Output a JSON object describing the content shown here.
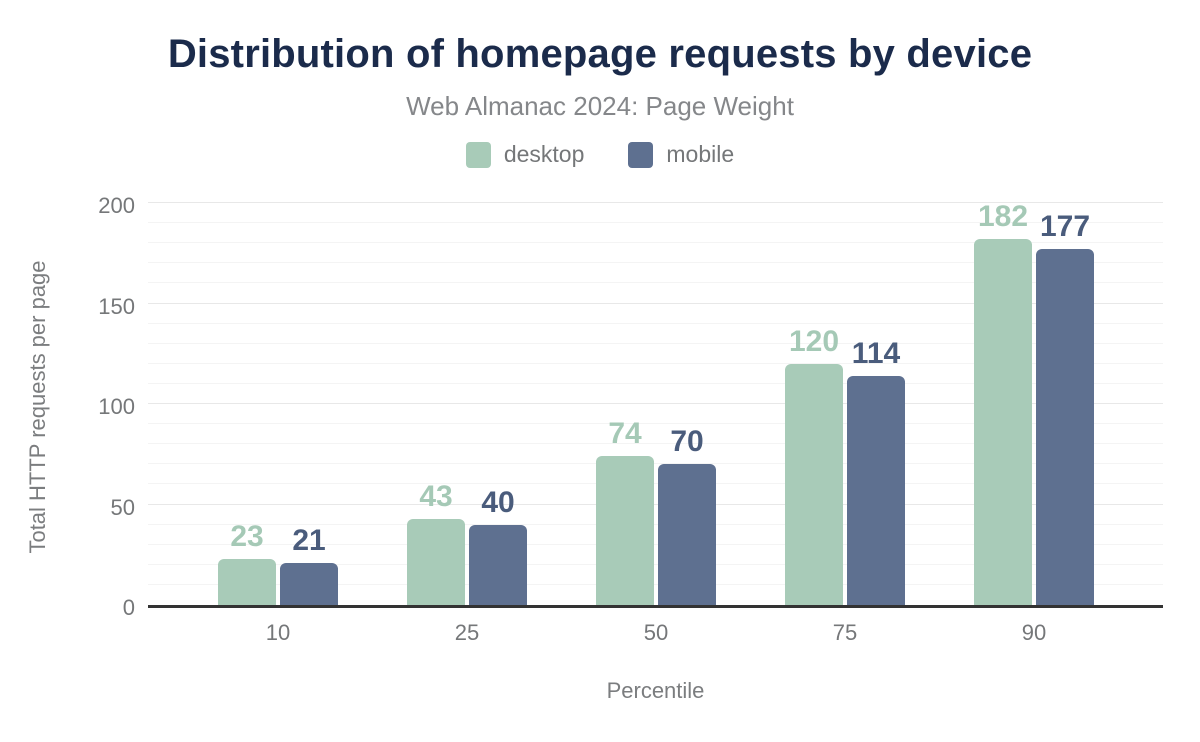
{
  "chart_data": {
    "type": "bar",
    "title": "Distribution of homepage requests by device",
    "subtitle": "Web Almanac 2024: Page Weight",
    "xlabel": "Percentile",
    "ylabel": "Total HTTP requests per page",
    "categories": [
      "10",
      "25",
      "50",
      "75",
      "90"
    ],
    "series": [
      {
        "name": "desktop",
        "color": "#a8cbb8",
        "label_color": "#a5c9b6",
        "values": [
          23,
          43,
          74,
          120,
          182
        ]
      },
      {
        "name": "mobile",
        "color": "#5e7090",
        "label_color": "#4a5c7c",
        "values": [
          21,
          40,
          70,
          114,
          177
        ]
      }
    ],
    "ylim": [
      0,
      200
    ],
    "yticks": [
      0,
      50,
      100,
      150,
      200
    ],
    "grid": {
      "minor_step": 10,
      "major_step": 50,
      "minor_color": "#f4f4f4",
      "major_color": "#e8e8e8"
    },
    "legend_position": "top",
    "colors": {
      "title": "#1b2b4b",
      "subtitle": "#85878a",
      "tick_labels": "#757779",
      "axis_titles": "#7b7d7f",
      "axis_line": "#333333",
      "background": "#ffffff"
    }
  }
}
